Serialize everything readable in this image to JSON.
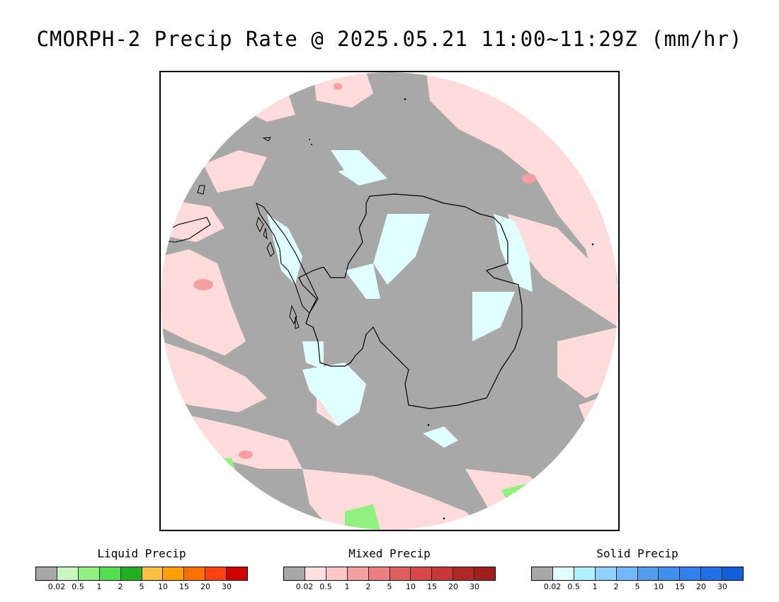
{
  "title": "CMORPH-2 Precip Rate @ 2025.05.21 11:00~11:29Z (mm/hr)",
  "map": {
    "projection": "south-polar-stereographic",
    "background_color": "#a8a8a8",
    "coastline_color": "#000000"
  },
  "legends": [
    {
      "id": "liquid",
      "title": "Liquid Precip",
      "colors": [
        "#a8a8a8",
        "#c8f8c0",
        "#90f080",
        "#50e050",
        "#20b020",
        "#ffc040",
        "#ffa000",
        "#ff7000",
        "#ff4010",
        "#d00000"
      ],
      "ticks": [
        "0.02",
        "0.5",
        "1",
        "2",
        "5",
        "10",
        "15",
        "20",
        "30"
      ]
    },
    {
      "id": "mixed",
      "title": "Mixed Precip",
      "colors": [
        "#a8a8a8",
        "#ffe0e0",
        "#ffc8c8",
        "#f4a0a0",
        "#ec8080",
        "#e06060",
        "#d84848",
        "#c83838",
        "#b02828",
        "#a02020"
      ],
      "ticks": [
        "0.02",
        "0.5",
        "1",
        "2",
        "5",
        "10",
        "15",
        "20",
        "30"
      ]
    },
    {
      "id": "solid",
      "title": "Solid Precip",
      "colors": [
        "#a8a8a8",
        "#e0ffff",
        "#b0f0ff",
        "#90d0ff",
        "#70b8ff",
        "#50a0f0",
        "#4090f0",
        "#3080f0",
        "#2070e8",
        "#1060d8"
      ],
      "ticks": [
        "0.02",
        "0.5",
        "1",
        "2",
        "5",
        "10",
        "15",
        "20",
        "30"
      ]
    }
  ]
}
